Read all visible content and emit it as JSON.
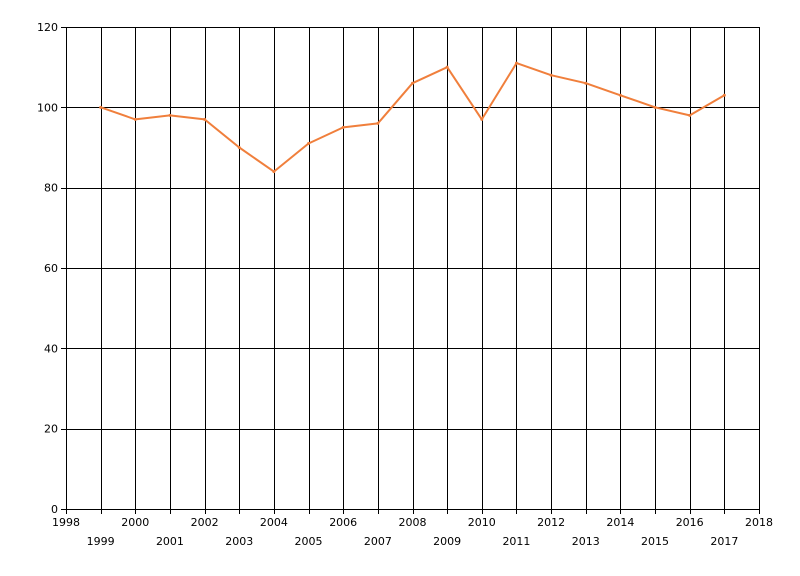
{
  "chart_data": {
    "type": "line",
    "title": "",
    "xlabel": "",
    "ylabel": "",
    "xlim": [
      1998,
      2018
    ],
    "ylim": [
      0,
      120
    ],
    "y_ticks": [
      0,
      20,
      40,
      60,
      80,
      100,
      120
    ],
    "x_ticks": [
      1998,
      1999,
      2000,
      2001,
      2002,
      2003,
      2004,
      2005,
      2006,
      2007,
      2008,
      2009,
      2010,
      2011,
      2012,
      2013,
      2014,
      2015,
      2016,
      2017,
      2018
    ],
    "grid": true,
    "legend": "none",
    "series": [
      {
        "color": "#f07f3c",
        "x": [
          1999,
          2000,
          2001,
          2002,
          2003,
          2004,
          2005,
          2006,
          2007,
          2008,
          2009,
          2010,
          2011,
          2012,
          2013,
          2014,
          2015,
          2016,
          2017
        ],
        "values": [
          100,
          97,
          98,
          97,
          90,
          84,
          91,
          95,
          96,
          106,
          110,
          97,
          111,
          108,
          106,
          103,
          100,
          98,
          103
        ]
      }
    ]
  }
}
